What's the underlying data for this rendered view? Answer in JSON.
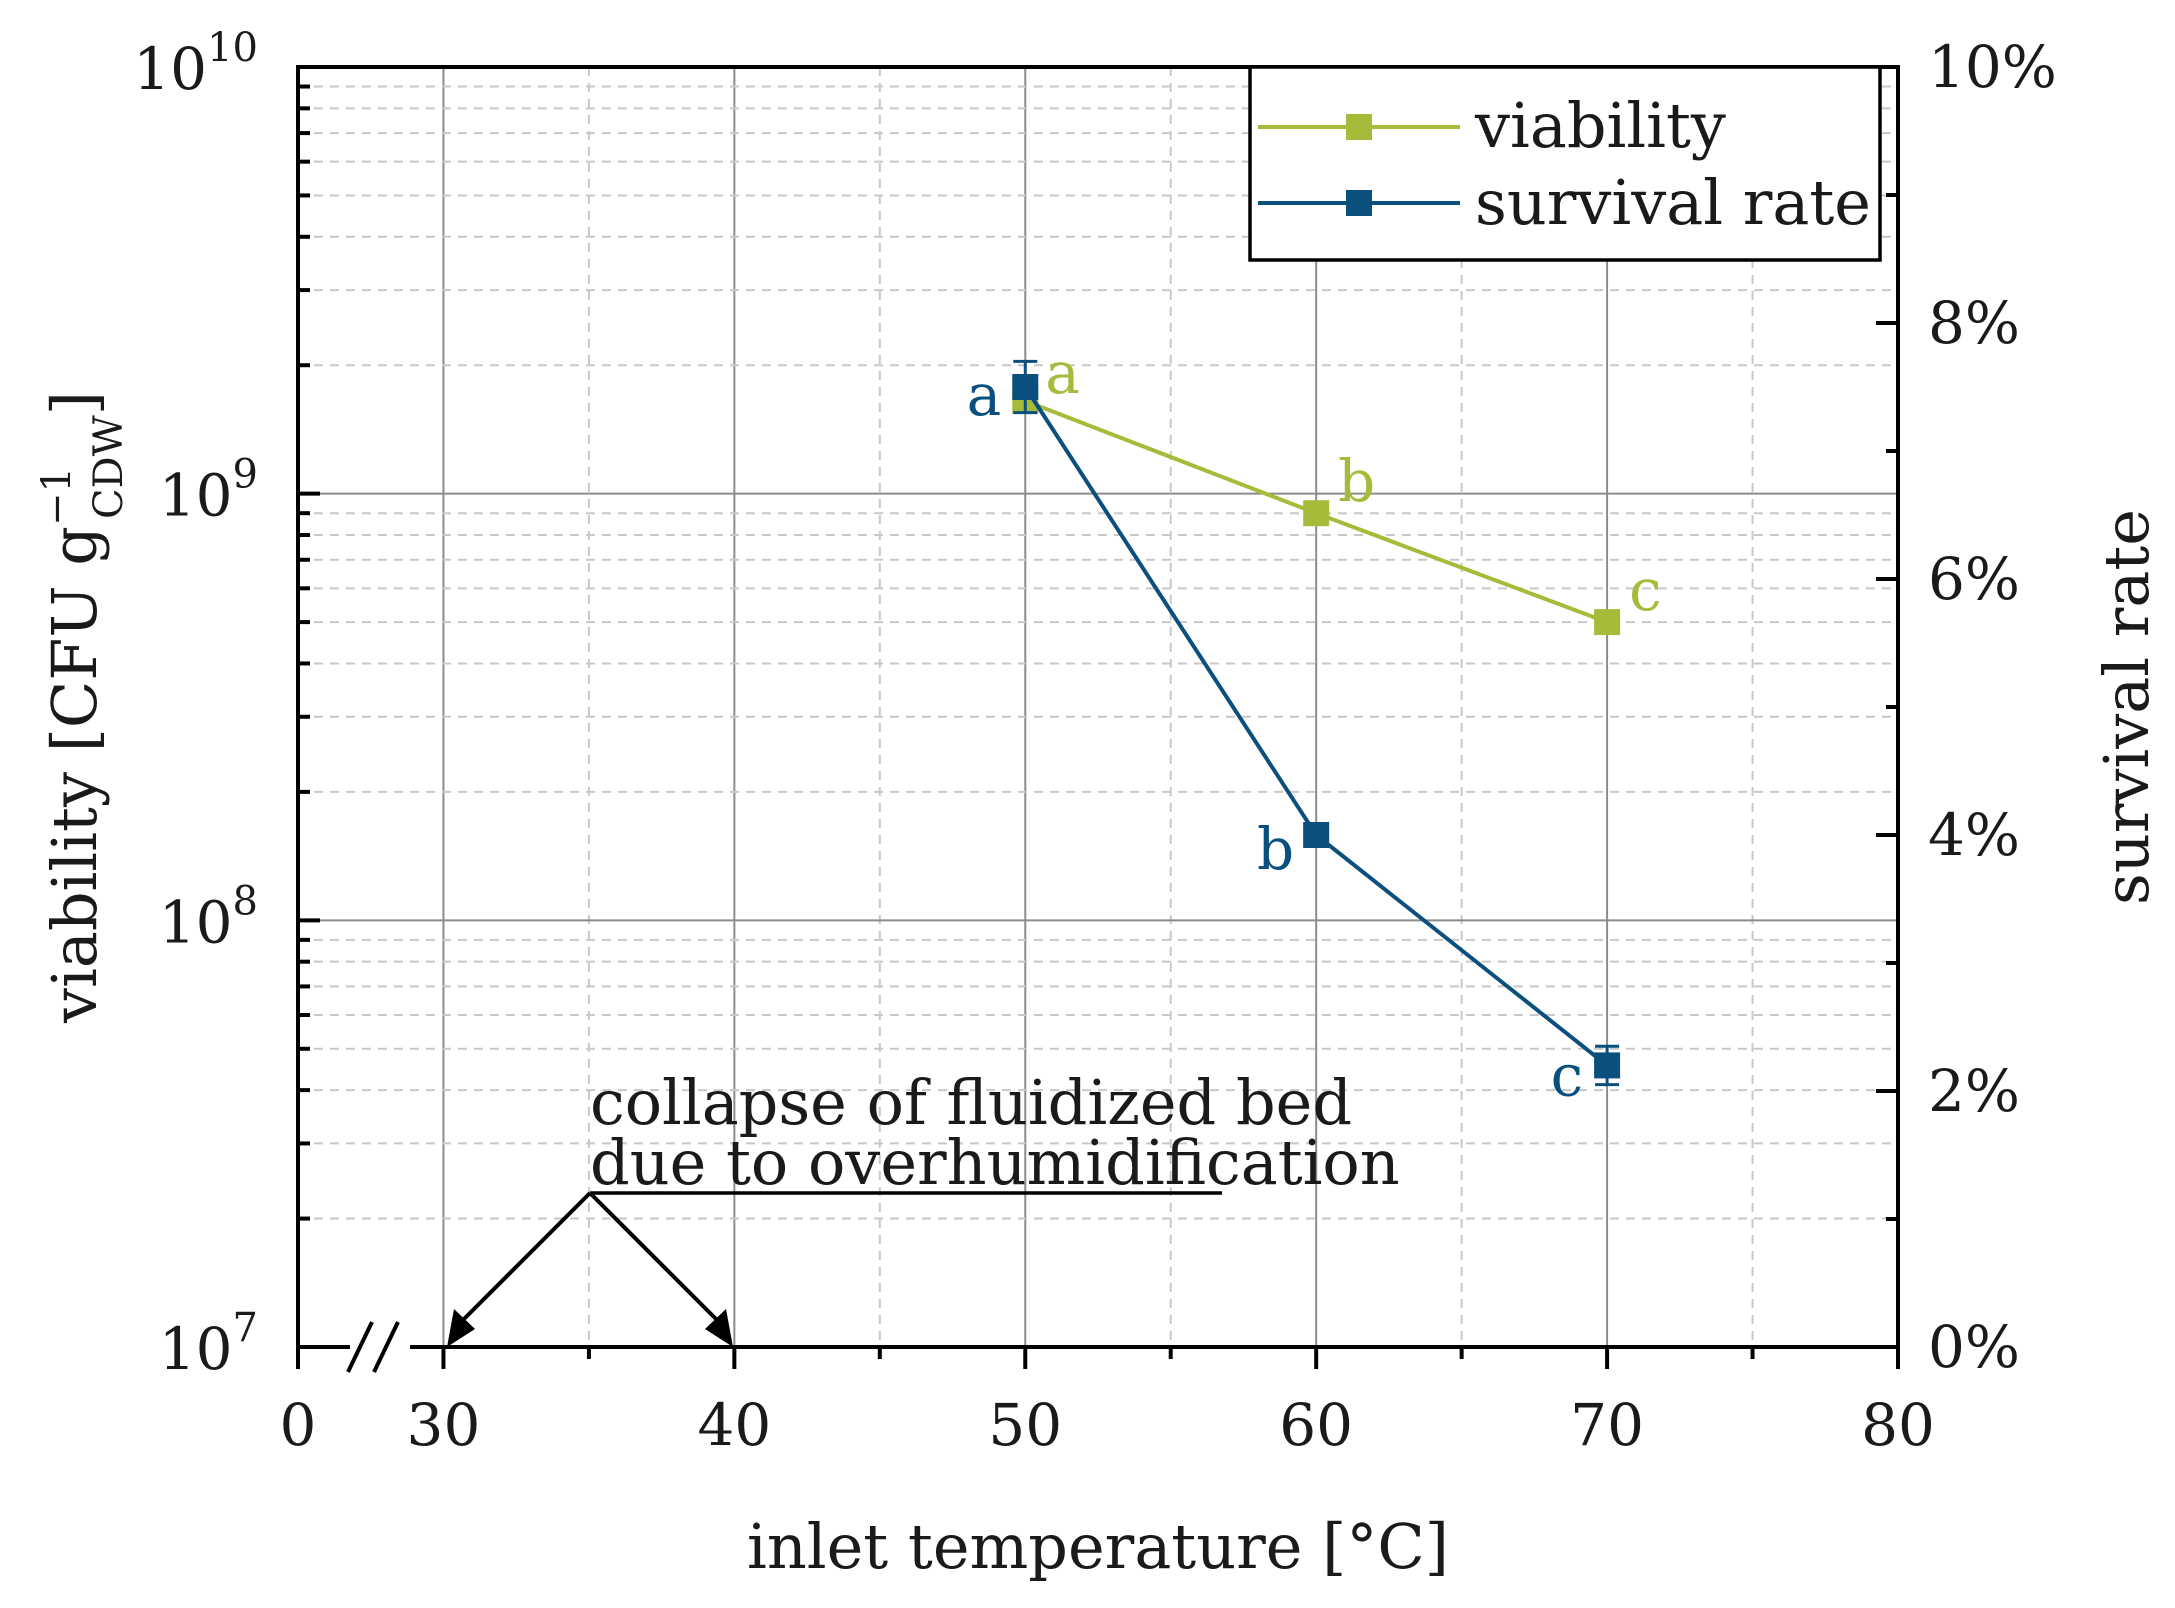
{
  "chart_data": {
    "type": "line",
    "title": "",
    "xlabel": "inlet temperature [°C]",
    "ylabel_left": {
      "prefix": "viability [CFU g",
      "superscript": "−1",
      "subscript": "CDW",
      "suffix": "]"
    },
    "ylabel_right": "survival rate",
    "x_axis": {
      "ticks": [
        0,
        30,
        40,
        50,
        60,
        70,
        80
      ],
      "tick_labels": [
        "0",
        "30",
        "40",
        "50",
        "60",
        "70",
        "80"
      ],
      "broken_between": [
        0,
        30
      ],
      "display_range": [
        25,
        80
      ]
    },
    "y_left": {
      "scale": "log",
      "ylim": [
        10000000,
        10000000000
      ],
      "tick_labels": [
        {
          "value": 10000000,
          "base": "10",
          "exp": "7"
        },
        {
          "value": 100000000,
          "base": "10",
          "exp": "8"
        },
        {
          "value": 1000000000,
          "base": "10",
          "exp": "9"
        },
        {
          "value": 10000000000,
          "base": "10",
          "exp": "10"
        }
      ]
    },
    "y_right": {
      "scale": "linear",
      "ylim": [
        0,
        10
      ],
      "ticks": [
        0,
        2,
        4,
        6,
        8,
        10
      ],
      "tick_labels": [
        "0%",
        "2%",
        "4%",
        "6%",
        "8%",
        "10%"
      ]
    },
    "series": [
      {
        "name": "viability",
        "axis": "left",
        "color": "#a5bb3a",
        "x": [
          50,
          60,
          70
        ],
        "y": [
          1650000000,
          900000000,
          500000000
        ],
        "labels": [
          "a",
          "b",
          "c"
        ]
      },
      {
        "name": "survival rate",
        "axis": "right",
        "color": "#0b4f7e",
        "x": [
          50,
          60,
          70
        ],
        "y": [
          7.5,
          4.0,
          2.2
        ],
        "err": [
          0.2,
          0.05,
          0.15
        ],
        "labels": [
          "a",
          "b",
          "c"
        ]
      }
    ],
    "legend": {
      "position": "top-right",
      "entries": [
        "viability",
        "survival rate"
      ]
    },
    "annotation": {
      "line1": "collapse of fluidized bed",
      "line2": "due to overhumidification",
      "arrow_targets_x": [
        30,
        40
      ]
    }
  }
}
